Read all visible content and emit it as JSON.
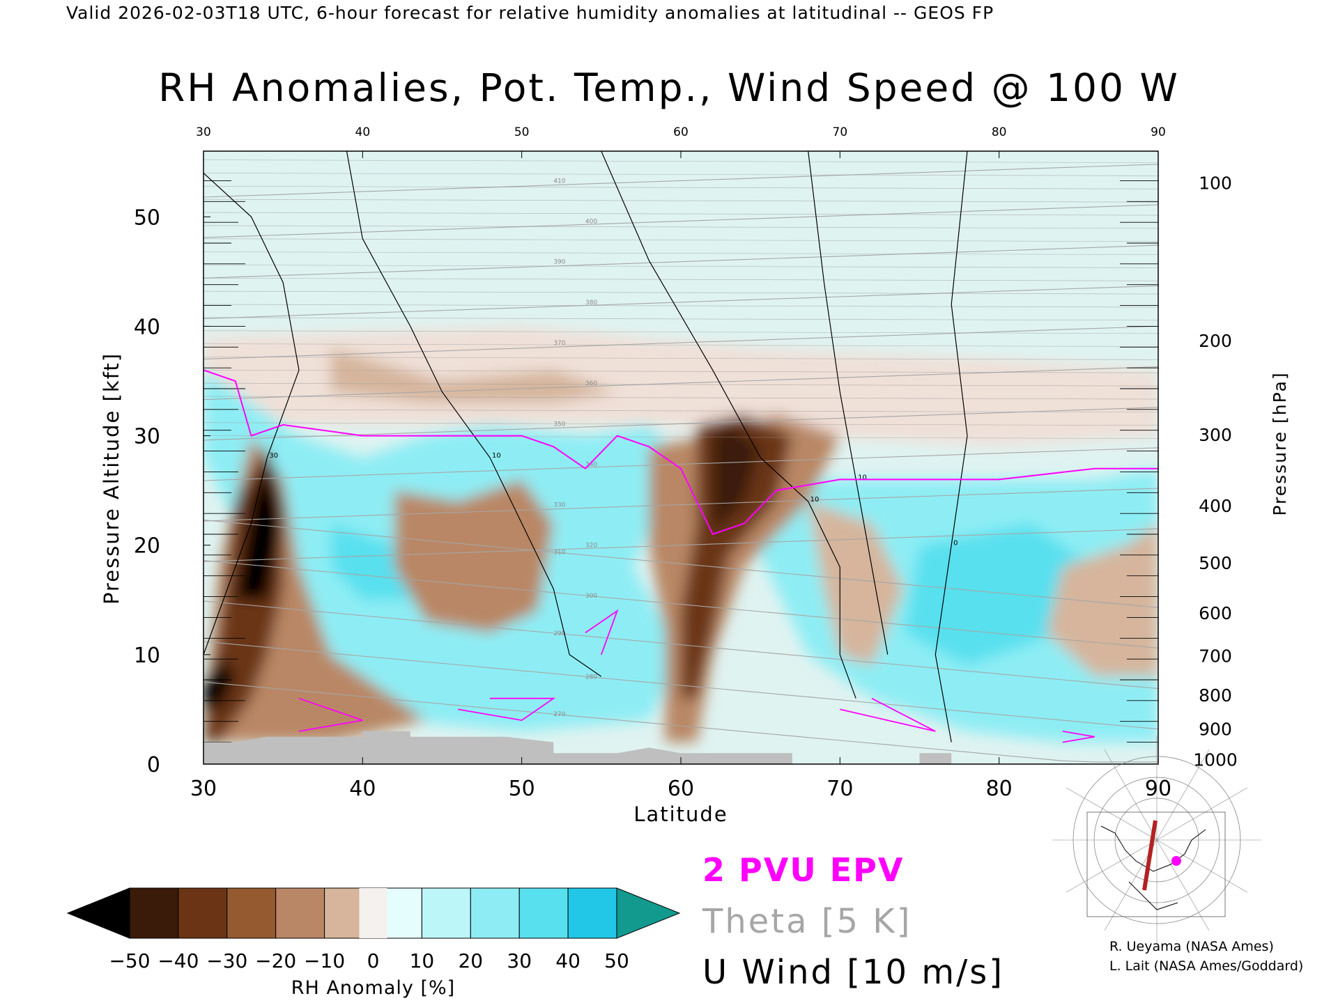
{
  "header": {
    "valid_line": "Valid 2026-02-03T18 UTC, 6-hour forecast for relative humidity anomalies at latitudinal -- GEOS FP",
    "title": "RH Anomalies, Pot. Temp., Wind Speed @ 100 W"
  },
  "legend": {
    "epv_label": "2 PVU EPV",
    "theta_label": "Theta [5 K]",
    "uwind_label": "U Wind [10 m/s]"
  },
  "credits": {
    "line1": "R. Ueyama (NASA Ames)",
    "line2": "L. Lait (NASA Ames/Goddard)"
  },
  "colors": {
    "epv": "#ff00ff",
    "theta": "#a6a6a6",
    "wind": "#000000",
    "terrain": "#bfbfbf",
    "bar": [
      "#000000",
      "#3a1a08",
      "#6b3515",
      "#955a30",
      "#b98765",
      "#d6b59c",
      "#efe0d8",
      "#e6fdfd",
      "#bdf6f8",
      "#8eedf4",
      "#58e0ef",
      "#22c6e6",
      "#0596b8",
      "#139a8f"
    ]
  },
  "chart_data": {
    "type": "heatmap",
    "xlabel": "Latitude",
    "ylabel": "Pressure Altitude [kft]",
    "ylabel_right": "Pressure [hPa]",
    "xlim": [
      30,
      90
    ],
    "ylim": [
      0,
      56
    ],
    "x_ticks": [
      30,
      40,
      50,
      60,
      70,
      80,
      90
    ],
    "y_ticks": [
      0,
      10,
      20,
      30,
      40,
      50
    ],
    "pressure_ticks": [
      {
        "p": 1000,
        "alt": 0.4
      },
      {
        "p": 900,
        "alt": 3.2
      },
      {
        "p": 800,
        "alt": 6.3
      },
      {
        "p": 700,
        "alt": 9.9
      },
      {
        "p": 600,
        "alt": 13.8
      },
      {
        "p": 500,
        "alt": 18.4
      },
      {
        "p": 400,
        "alt": 23.6
      },
      {
        "p": 300,
        "alt": 30.1
      },
      {
        "p": 200,
        "alt": 38.7
      },
      {
        "p": 100,
        "alt": 53.1
      }
    ],
    "colorbar": {
      "label": "RH Anomaly [%]",
      "ticks": [
        -50,
        -40,
        -30,
        -20,
        -10,
        0,
        10,
        20,
        30,
        40,
        50
      ]
    },
    "rh_anomaly_regions": [
      {
        "color": "#efe0d8",
        "points": [
          [
            30,
            39
          ],
          [
            50,
            40
          ],
          [
            65,
            38
          ],
          [
            80,
            37
          ],
          [
            90,
            36
          ],
          [
            90,
            30
          ],
          [
            80,
            29
          ],
          [
            68,
            30
          ],
          [
            58,
            31
          ],
          [
            45,
            31
          ],
          [
            30,
            31
          ]
        ]
      },
      {
        "color": "#d6b59c",
        "points": [
          [
            38,
            38
          ],
          [
            45,
            35
          ],
          [
            52,
            36
          ],
          [
            56,
            34
          ],
          [
            52,
            33
          ],
          [
            44,
            33
          ],
          [
            38,
            34
          ]
        ]
      },
      {
        "color": "#8eedf4",
        "points": [
          [
            30,
            36
          ],
          [
            33,
            33
          ],
          [
            36,
            30
          ],
          [
            40,
            28
          ],
          [
            44,
            30
          ],
          [
            48,
            31
          ],
          [
            54,
            30
          ],
          [
            58,
            31
          ],
          [
            60,
            28
          ],
          [
            57,
            18
          ],
          [
            60,
            10
          ],
          [
            58,
            4
          ],
          [
            50,
            3
          ],
          [
            42,
            4
          ],
          [
            36,
            8
          ],
          [
            33,
            14
          ],
          [
            32,
            22
          ],
          [
            30,
            28
          ]
        ]
      },
      {
        "color": "#58e0ef",
        "points": [
          [
            38,
            22
          ],
          [
            42,
            20
          ],
          [
            46,
            18
          ],
          [
            44,
            15
          ],
          [
            40,
            15
          ],
          [
            38,
            18
          ]
        ]
      },
      {
        "color": "#b98765",
        "points": [
          [
            42,
            25
          ],
          [
            46,
            24
          ],
          [
            50,
            26
          ],
          [
            52,
            22
          ],
          [
            51,
            14
          ],
          [
            48,
            12
          ],
          [
            44,
            13
          ],
          [
            42,
            18
          ]
        ]
      },
      {
        "color": "#8eedf4",
        "points": [
          [
            65,
            26
          ],
          [
            72,
            26
          ],
          [
            80,
            26
          ],
          [
            86,
            26
          ],
          [
            90,
            27
          ],
          [
            90,
            2
          ],
          [
            84,
            2
          ],
          [
            78,
            3
          ],
          [
            72,
            6
          ],
          [
            68,
            10
          ],
          [
            66,
            16
          ],
          [
            64,
            22
          ]
        ]
      },
      {
        "color": "#58e0ef",
        "points": [
          [
            75,
            20
          ],
          [
            82,
            22
          ],
          [
            86,
            18
          ],
          [
            84,
            12
          ],
          [
            78,
            9
          ],
          [
            74,
            12
          ]
        ]
      },
      {
        "color": "#b98765",
        "points": [
          [
            58,
            29
          ],
          [
            62,
            30
          ],
          [
            66,
            32
          ],
          [
            70,
            30
          ],
          [
            68,
            24
          ],
          [
            64,
            18
          ],
          [
            62,
            10
          ],
          [
            61,
            2
          ],
          [
            59,
            2
          ],
          [
            59,
            12
          ],
          [
            58,
            20
          ]
        ]
      },
      {
        "color": "#6b3515",
        "points": [
          [
            61,
            31
          ],
          [
            64,
            32
          ],
          [
            67,
            30
          ],
          [
            66,
            24
          ],
          [
            63,
            19
          ],
          [
            62,
            12
          ],
          [
            61,
            6
          ],
          [
            60,
            6
          ],
          [
            60,
            14
          ],
          [
            61,
            22
          ]
        ]
      },
      {
        "color": "#3a1a08",
        "points": [
          [
            62,
            30
          ],
          [
            63,
            31
          ],
          [
            65,
            29
          ],
          [
            64,
            24
          ],
          [
            62,
            21
          ]
        ]
      },
      {
        "color": "#d6b59c",
        "points": [
          [
            68,
            24
          ],
          [
            72,
            22
          ],
          [
            74,
            16
          ],
          [
            72,
            9
          ],
          [
            70,
            10
          ],
          [
            69,
            16
          ]
        ]
      },
      {
        "color": "#d6b59c",
        "points": [
          [
            84,
            18
          ],
          [
            88,
            20
          ],
          [
            90,
            22
          ],
          [
            90,
            8
          ],
          [
            86,
            8
          ],
          [
            83,
            12
          ]
        ]
      },
      {
        "color": "#b98765",
        "points": [
          [
            30,
            4
          ],
          [
            31,
            18
          ],
          [
            33,
            30
          ],
          [
            35,
            26
          ],
          [
            36,
            18
          ],
          [
            38,
            10
          ],
          [
            40,
            8
          ],
          [
            44,
            4
          ],
          [
            38,
            2
          ],
          [
            30,
            2
          ]
        ]
      },
      {
        "color": "#6b3515",
        "points": [
          [
            30,
            2
          ],
          [
            31,
            12
          ],
          [
            32,
            24
          ],
          [
            34,
            29
          ],
          [
            35,
            24
          ],
          [
            35,
            16
          ],
          [
            34,
            10
          ],
          [
            33,
            6
          ],
          [
            31,
            2
          ]
        ]
      },
      {
        "color": "#000000",
        "points": [
          [
            32,
            15
          ],
          [
            33,
            24
          ],
          [
            34,
            28
          ],
          [
            35,
            22
          ],
          [
            34,
            15
          ]
        ]
      },
      {
        "color": "#000000",
        "points": [
          [
            30,
            7
          ],
          [
            31,
            10
          ],
          [
            32,
            8
          ],
          [
            31,
            5
          ],
          [
            30,
            5
          ]
        ]
      }
    ],
    "epv_2pvu_path": [
      [
        30,
        36
      ],
      [
        32,
        35
      ],
      [
        33,
        30
      ],
      [
        35,
        31
      ],
      [
        40,
        30
      ],
      [
        45,
        30
      ],
      [
        50,
        30
      ],
      [
        52,
        29
      ],
      [
        54,
        27
      ],
      [
        56,
        30
      ],
      [
        58,
        29
      ],
      [
        60,
        27
      ],
      [
        62,
        21
      ],
      [
        64,
        22
      ],
      [
        66,
        25
      ],
      [
        70,
        26
      ],
      [
        80,
        26
      ],
      [
        86,
        27
      ],
      [
        90,
        27
      ]
    ],
    "theta_levels": [
      270,
      280,
      290,
      300,
      310,
      320,
      330,
      340,
      350,
      360,
      370,
      380,
      390,
      400,
      410
    ],
    "wind_contours": [
      {
        "label": "10",
        "points": [
          [
            39,
            56
          ],
          [
            40,
            48
          ],
          [
            43,
            40
          ],
          [
            45,
            34
          ],
          [
            48,
            28
          ],
          [
            50,
            22
          ],
          [
            52,
            16
          ],
          [
            53,
            10
          ],
          [
            55,
            8
          ]
        ]
      },
      {
        "label": "10",
        "points": [
          [
            55,
            56
          ],
          [
            58,
            46
          ],
          [
            62,
            36
          ],
          [
            65,
            28
          ],
          [
            68,
            24
          ],
          [
            70,
            18
          ],
          [
            70,
            10
          ],
          [
            71,
            6
          ]
        ]
      },
      {
        "label": "10",
        "points": [
          [
            68,
            56
          ],
          [
            69,
            44
          ],
          [
            70,
            34
          ],
          [
            71,
            26
          ],
          [
            72,
            18
          ],
          [
            73,
            10
          ]
        ]
      },
      {
        "label": "0",
        "points": [
          [
            78,
            56
          ],
          [
            77,
            42
          ],
          [
            78,
            30
          ],
          [
            77,
            20
          ],
          [
            76,
            10
          ],
          [
            77,
            2
          ]
        ]
      },
      {
        "label": "30",
        "points": [
          [
            30,
            54
          ],
          [
            33,
            50
          ],
          [
            35,
            44
          ],
          [
            36,
            36
          ],
          [
            34,
            28
          ],
          [
            33,
            22
          ],
          [
            31,
            14
          ],
          [
            30,
            10
          ]
        ]
      }
    ],
    "terrain": [
      [
        30,
        0
      ],
      [
        30,
        2
      ],
      [
        32,
        2
      ],
      [
        34,
        2.5
      ],
      [
        40,
        2.5
      ],
      [
        40,
        3
      ],
      [
        43,
        3
      ],
      [
        43,
        2.5
      ],
      [
        49,
        2.5
      ],
      [
        52,
        2
      ],
      [
        52,
        1
      ],
      [
        56,
        1
      ],
      [
        58,
        1.5
      ],
      [
        60,
        1
      ],
      [
        67,
        1
      ],
      [
        67,
        0
      ],
      [
        75,
        0
      ],
      [
        75,
        1
      ],
      [
        77,
        1
      ],
      [
        77,
        0
      ],
      [
        90,
        0
      ]
    ]
  }
}
